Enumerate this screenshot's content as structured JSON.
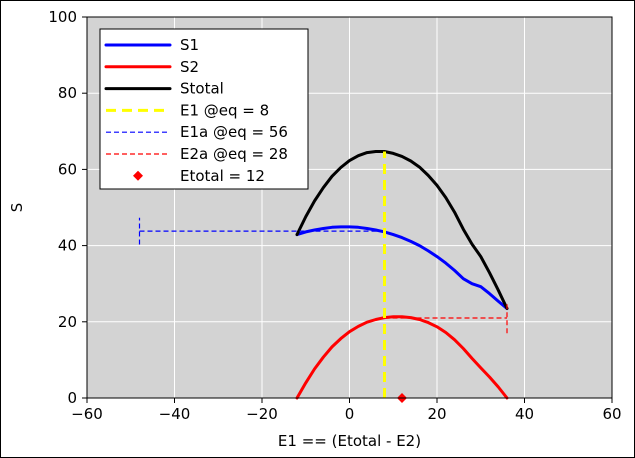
{
  "chart_data": {
    "type": "line",
    "title": "",
    "xlabel": "E1 == (Etotal - E2)",
    "ylabel": "S",
    "xlim": [
      -60,
      60
    ],
    "ylim": [
      0,
      100
    ],
    "xticks": [
      -60,
      -40,
      -20,
      0,
      20,
      40,
      60
    ],
    "yticks": [
      0,
      20,
      40,
      60,
      80,
      100
    ],
    "xtick_labels": [
      "−60",
      "−40",
      "−20",
      "0",
      "20",
      "40",
      "60"
    ],
    "ytick_labels": [
      "0",
      "20",
      "40",
      "60",
      "80",
      "100"
    ],
    "grid": true,
    "legend_position": "top-left",
    "plot_background": "#d3d3d3",
    "series": [
      {
        "name": "S1",
        "color": "#0000ff",
        "style": "solid",
        "x": [
          -12,
          -10,
          -8,
          -6,
          -4,
          -2,
          0,
          2,
          4,
          6,
          8,
          10,
          12,
          14,
          16,
          18,
          20,
          22,
          24,
          26,
          28,
          30,
          32,
          34,
          36
        ],
        "y": [
          42.9,
          43.6,
          44.1,
          44.5,
          44.8,
          44.9,
          44.9,
          44.8,
          44.5,
          44.1,
          43.6,
          42.9,
          42.1,
          41.1,
          40.0,
          38.6,
          37.1,
          35.4,
          33.5,
          31.3,
          30.0,
          29.2,
          27.4,
          25.4,
          23.5
        ]
      },
      {
        "name": "S2",
        "color": "#ff0000",
        "style": "solid",
        "x": [
          -12,
          -10,
          -8,
          -6,
          -4,
          -2,
          0,
          2,
          4,
          6,
          8,
          10,
          12,
          14,
          16,
          18,
          20,
          22,
          24,
          26,
          28,
          30,
          32,
          34,
          36
        ],
        "y": [
          0,
          4.0,
          7.6,
          10.7,
          13.4,
          15.6,
          17.4,
          18.8,
          19.9,
          20.6,
          21.1,
          21.3,
          21.3,
          21.1,
          20.6,
          19.8,
          18.7,
          17.2,
          15.3,
          13.0,
          10.4,
          7.9,
          5.5,
          2.9,
          0
        ]
      },
      {
        "name": "Stotal",
        "color": "#000000",
        "style": "solid",
        "x": [
          -12,
          -10,
          -8,
          -6,
          -4,
          -2,
          0,
          2,
          4,
          6,
          8,
          10,
          12,
          14,
          16,
          18,
          20,
          22,
          24,
          26,
          28,
          30,
          32,
          34,
          36
        ],
        "y": [
          42.9,
          47.6,
          51.7,
          55.2,
          58.2,
          60.5,
          62.3,
          63.6,
          64.4,
          64.7,
          64.7,
          64.2,
          63.4,
          62.2,
          60.6,
          58.4,
          55.8,
          52.6,
          48.8,
          44.3,
          40.4,
          37.1,
          32.9,
          28.3,
          23.5
        ]
      },
      {
        "name": "E1 @eq = 8",
        "color": "#ffff00",
        "style": "dashed-thick",
        "x": [
          8,
          8
        ],
        "y": [
          0,
          64.7
        ]
      },
      {
        "name": "E1a @eq = 56",
        "color": "#0000ff",
        "style": "dashed",
        "segments": [
          {
            "x": [
              -48,
              8
            ],
            "y": [
              43.8,
              43.8
            ]
          },
          {
            "x": [
              -48,
              -48
            ],
            "y": [
              40.3,
              47.3
            ]
          }
        ]
      },
      {
        "name": "E2a @eq = 28",
        "color": "#ff0000",
        "style": "dashed",
        "segments": [
          {
            "x": [
              8,
              36
            ],
            "y": [
              21.0,
              21.0
            ]
          },
          {
            "x": [
              36,
              36
            ],
            "y": [
              17.0,
              25.0
            ]
          }
        ]
      },
      {
        "name": "Etotal = 12",
        "color": "#ff0000",
        "style": "marker-diamond",
        "x": [
          12
        ],
        "y": [
          0
        ]
      }
    ]
  }
}
